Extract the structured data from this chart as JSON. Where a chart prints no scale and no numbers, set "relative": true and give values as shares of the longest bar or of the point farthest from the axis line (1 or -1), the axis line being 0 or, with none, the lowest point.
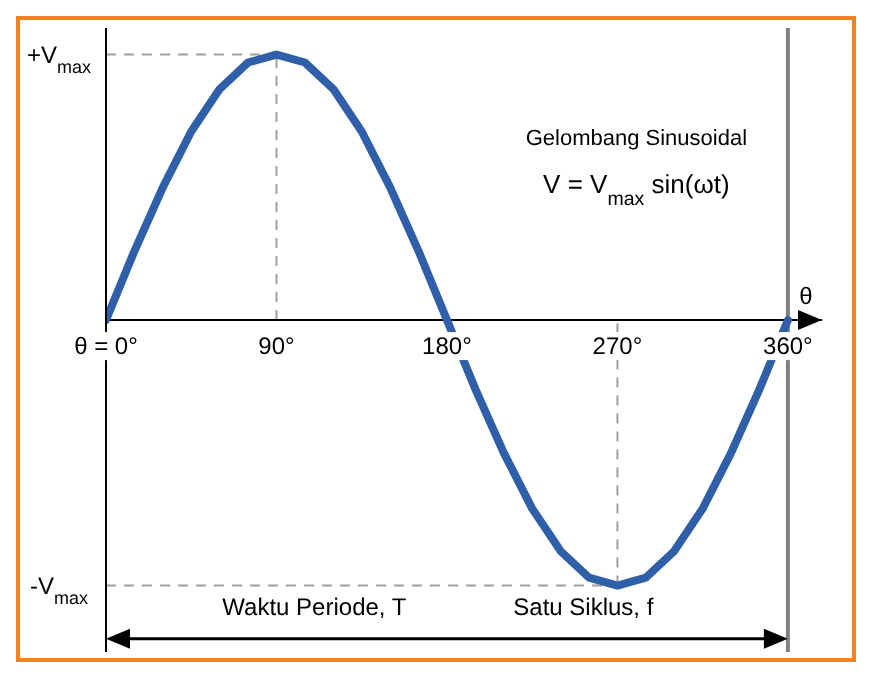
{
  "chart_data": {
    "type": "line",
    "title": "Gelombang Sinusoidal",
    "subtitle": "V = V$_{max}$ sin(ωt)",
    "xlabel": "θ",
    "x": [
      0,
      15,
      30,
      45,
      60,
      75,
      90,
      105,
      120,
      135,
      150,
      165,
      180,
      195,
      210,
      225,
      240,
      255,
      270,
      285,
      300,
      315,
      330,
      345,
      360
    ],
    "series": [
      {
        "color": "#2e5fa8",
        "values": [
          0,
          0.26,
          0.5,
          0.71,
          0.87,
          0.97,
          1,
          0.97,
          0.87,
          0.71,
          0.5,
          0.26,
          0,
          -0.26,
          -0.5,
          -0.71,
          -0.87,
          -0.97,
          -1,
          -0.97,
          -0.87,
          -0.71,
          -0.5,
          -0.26,
          0
        ]
      }
    ],
    "xlim": [
      0,
      378
    ],
    "xticks": [
      {
        "value": 0,
        "label": "θ = 0°"
      },
      {
        "value": 90,
        "label": "90°"
      },
      {
        "value": 180,
        "label": "180°"
      },
      {
        "value": 270,
        "label": "270°"
      },
      {
        "value": 360,
        "label": "360°"
      }
    ],
    "relative": true,
    "ref_lines": [
      {
        "axis": "y",
        "value": 1,
        "label": "+V$_{max}$",
        "color": "#a0a0a0",
        "line_style": "dashed"
      },
      {
        "axis": "y",
        "value": -1,
        "label": "-V$_{max}$",
        "color": "#a0a0a0",
        "line_style": "dashed"
      },
      {
        "axis": "x",
        "value": 90,
        "color": "#a0a0a0",
        "line_style": "dashed"
      },
      {
        "axis": "x",
        "value": 270,
        "color": "#a0a0a0",
        "line_style": "dashed"
      },
      {
        "axis": "x",
        "value": 360,
        "color": "#808080",
        "line_style": "solid"
      }
    ],
    "annotations": [
      "Waktu Periode, T",
      "Satu Siklus, f"
    ],
    "marker": "none",
    "line_style": "solid"
  }
}
